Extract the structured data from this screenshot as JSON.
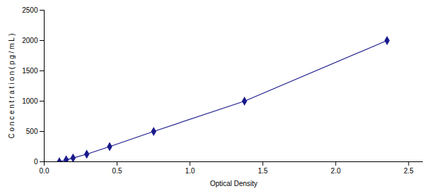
{
  "chart_data": {
    "type": "line",
    "x": [
      0.104,
      0.151,
      0.198,
      0.292,
      0.449,
      0.751,
      1.374,
      2.352
    ],
    "values": [
      0,
      31.25,
      62.5,
      125,
      250,
      500,
      1000,
      2000
    ],
    "color": "#1a1a8c",
    "marker": "diamond",
    "xlabel": "Optical Density",
    "ylabel": "C o n c e n t r a t i o n ( p g / m L )",
    "xlim": [
      0.0,
      2.6
    ],
    "ylim": [
      0,
      2500
    ],
    "xticks": [
      {
        "value": 0,
        "label": "0.0"
      },
      0.5,
      {
        "value": 1,
        "label": "1.0"
      },
      1.5,
      {
        "value": 2,
        "label": "2.0"
      },
      2.5
    ],
    "yticks": [
      0,
      500,
      1000,
      1500,
      2000,
      2500
    ],
    "grid": false
  }
}
